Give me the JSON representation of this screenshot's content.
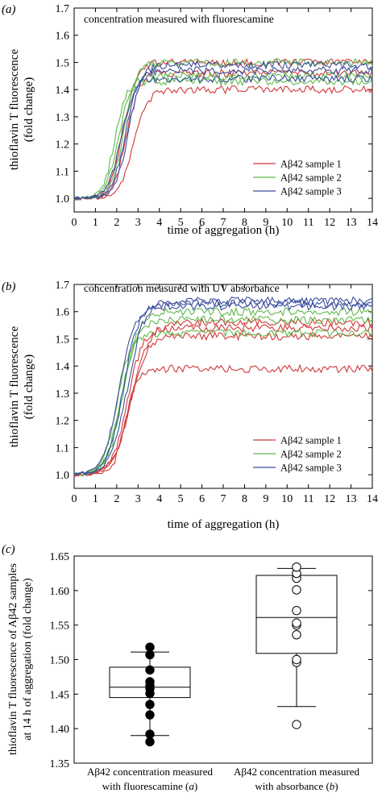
{
  "figure": {
    "panel_labels": [
      "(a)",
      "(b)",
      "(c)"
    ]
  },
  "colors": {
    "sample1": "#d2383a",
    "sample2": "#5fba4a",
    "sample3": "#3b4f9c",
    "axis": "#000000"
  },
  "chart_data": [
    {
      "type": "line",
      "panel": "(a)",
      "annotation": "concentration measured with fluorescamine",
      "xlabel": "time of aggregation (h)",
      "ylabel": "thioflavin T fluorescence (fold change)",
      "xlim": [
        0,
        14
      ],
      "ylim": [
        0.95,
        1.7
      ],
      "x_ticks": [
        0,
        1,
        2,
        3,
        4,
        5,
        6,
        7,
        8,
        9,
        10,
        11,
        12,
        13,
        14
      ],
      "y_ticks": [
        1.0,
        1.1,
        1.2,
        1.3,
        1.4,
        1.5,
        1.6,
        1.7
      ],
      "legend_position": "lower-right",
      "series": [
        {
          "name": "Aβ42 sample 1",
          "color_key": "sample1",
          "curves": [
            {
              "t_half": 2.8,
              "plateau": 1.4,
              "width": 0.55
            },
            {
              "t_half": 2.45,
              "plateau": 1.46,
              "width": 0.5
            },
            {
              "t_half": 2.3,
              "plateau": 1.5,
              "width": 0.5
            }
          ]
        },
        {
          "name": "Aβ42 sample 2",
          "color_key": "sample2",
          "curves": [
            {
              "t_half": 1.9,
              "plateau": 1.43,
              "width": 0.45
            },
            {
              "t_half": 2.1,
              "plateau": 1.45,
              "width": 0.5
            },
            {
              "t_half": 2.35,
              "plateau": 1.5,
              "width": 0.5
            }
          ]
        },
        {
          "name": "Aβ42 sample 3",
          "color_key": "sample3",
          "curves": [
            {
              "t_half": 2.2,
              "plateau": 1.44,
              "width": 0.5
            },
            {
              "t_half": 2.4,
              "plateau": 1.47,
              "width": 0.5
            },
            {
              "t_half": 2.55,
              "plateau": 1.49,
              "width": 0.5
            }
          ]
        }
      ]
    },
    {
      "type": "line",
      "panel": "(b)",
      "annotation": "concentration measured with UV absorbance",
      "xlabel": "time of aggregation (h)",
      "ylabel": "thioflavin T fluorescence (fold change)",
      "xlim": [
        0,
        14
      ],
      "ylim": [
        0.95,
        1.7
      ],
      "x_ticks": [
        0,
        1,
        2,
        3,
        4,
        5,
        6,
        7,
        8,
        9,
        10,
        11,
        12,
        13,
        14
      ],
      "y_ticks": [
        1.0,
        1.1,
        1.2,
        1.3,
        1.4,
        1.5,
        1.6,
        1.7
      ],
      "legend_position": "lower-right",
      "series": [
        {
          "name": "Aβ42 sample 1",
          "color_key": "sample1",
          "curves": [
            {
              "t_half": 2.4,
              "plateau": 1.39,
              "width": 0.45
            },
            {
              "t_half": 2.6,
              "plateau": 1.51,
              "width": 0.65
            },
            {
              "t_half": 2.5,
              "plateau": 1.54,
              "width": 0.6
            },
            {
              "t_half": 2.7,
              "plateau": 1.56,
              "width": 0.7
            }
          ]
        },
        {
          "name": "Aβ42 sample 2",
          "color_key": "sample2",
          "curves": [
            {
              "t_half": 2.0,
              "plateau": 1.52,
              "width": 0.55
            },
            {
              "t_half": 2.2,
              "plateau": 1.57,
              "width": 0.6
            },
            {
              "t_half": 2.3,
              "plateau": 1.6,
              "width": 0.6
            }
          ]
        },
        {
          "name": "Aβ42 sample 3",
          "color_key": "sample3",
          "curves": [
            {
              "t_half": 2.1,
              "plateau": 1.62,
              "width": 0.6
            },
            {
              "t_half": 2.3,
              "plateau": 1.63,
              "width": 0.6
            },
            {
              "t_half": 2.5,
              "plateau": 1.64,
              "width": 0.65
            }
          ]
        }
      ]
    },
    {
      "type": "box",
      "panel": "(c)",
      "ylabel": "thioflavin T fluorescence of Aβ42 samples at 14 h of aggregation (fold change)",
      "ylim": [
        1.35,
        1.65
      ],
      "y_ticks": [
        1.35,
        1.4,
        1.45,
        1.5,
        1.55,
        1.6,
        1.65
      ],
      "categories": [
        "Aβ42 concentration measured with fluorescamine (a)",
        "Aβ42 concentration measured with absorbance (b)"
      ],
      "category_lines": [
        [
          "Aβ42 concentration measured",
          "with fluorescamine (",
          "a",
          ")"
        ],
        [
          "Aβ42 concentration measured",
          "with absorbance (",
          "b",
          ")"
        ]
      ],
      "boxes": [
        {
          "whisker_low": 1.39,
          "q1": 1.445,
          "median": 1.46,
          "q3": 1.489,
          "whisker_high": 1.511,
          "filled": true,
          "points": [
            1.381,
            1.392,
            1.42,
            1.435,
            1.451,
            1.458,
            1.462,
            1.468,
            1.485,
            1.507,
            1.518
          ]
        },
        {
          "whisker_low": 1.432,
          "q1": 1.509,
          "median": 1.561,
          "q3": 1.622,
          "whisker_high": 1.632,
          "filled": false,
          "points": [
            1.406,
            1.496,
            1.5,
            1.536,
            1.55,
            1.553,
            1.571,
            1.601,
            1.618,
            1.625,
            1.634
          ]
        }
      ]
    }
  ]
}
